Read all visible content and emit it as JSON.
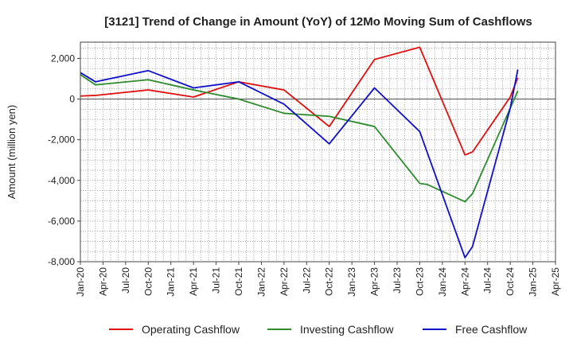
{
  "chart_data": {
    "type": "line",
    "title": "[3121]  Trend of Change in Amount (YoY) of 12Mo Moving Sum of Cashflows",
    "xlabel": "",
    "ylabel": "Amount (million yen)",
    "ylim": [
      -8000,
      2800
    ],
    "yticks": [
      2000,
      0,
      -2000,
      -4000,
      -6000,
      -8000
    ],
    "ytick_labels": [
      "2,000",
      "0",
      "-2,000",
      "-4,000",
      "-6,000",
      "-8,000"
    ],
    "x_range": [
      0,
      63
    ],
    "xticks": [
      {
        "label": "Jan-20",
        "index": 0
      },
      {
        "label": "Apr-20",
        "index": 3
      },
      {
        "label": "Jul-20",
        "index": 6
      },
      {
        "label": "Oct-20",
        "index": 9
      },
      {
        "label": "Jan-21",
        "index": 12
      },
      {
        "label": "Apr-21",
        "index": 15
      },
      {
        "label": "Jul-21",
        "index": 18
      },
      {
        "label": "Oct-21",
        "index": 21
      },
      {
        "label": "Jan-22",
        "index": 24
      },
      {
        "label": "Apr-22",
        "index": 27
      },
      {
        "label": "Jul-22",
        "index": 30
      },
      {
        "label": "Oct-22",
        "index": 33
      },
      {
        "label": "Jan-23",
        "index": 36
      },
      {
        "label": "Apr-23",
        "index": 39
      },
      {
        "label": "Jul-23",
        "index": 42
      },
      {
        "label": "Oct-23",
        "index": 45
      },
      {
        "label": "Jan-24",
        "index": 48
      },
      {
        "label": "Apr-24",
        "index": 51
      },
      {
        "label": "Jul-24",
        "index": 54
      },
      {
        "label": "Oct-24",
        "index": 57
      },
      {
        "label": "Jan-25",
        "index": 60
      },
      {
        "label": "Apr-25",
        "index": 63
      }
    ],
    "grid": true,
    "legend_position": "bottom",
    "series": [
      {
        "name": "Operating Cashflow",
        "color": "#e01010",
        "points": [
          [
            0,
            150
          ],
          [
            2,
            180
          ],
          [
            9,
            450
          ],
          [
            15,
            100
          ],
          [
            21,
            850
          ],
          [
            27,
            450
          ],
          [
            33,
            -1350
          ],
          [
            39,
            1950
          ],
          [
            42,
            2250
          ],
          [
            45,
            2550
          ],
          [
            51,
            -2750
          ],
          [
            52,
            -2600
          ],
          [
            57,
            100
          ],
          [
            58,
            1050
          ]
        ]
      },
      {
        "name": "Investing Cashflow",
        "color": "#2e8b2e",
        "points": [
          [
            0,
            1200
          ],
          [
            2,
            700
          ],
          [
            9,
            950
          ],
          [
            15,
            450
          ],
          [
            21,
            0
          ],
          [
            27,
            -700
          ],
          [
            33,
            -850
          ],
          [
            39,
            -1350
          ],
          [
            45,
            -4150
          ],
          [
            46,
            -4200
          ],
          [
            51,
            -5050
          ],
          [
            52,
            -4650
          ],
          [
            57,
            -450
          ],
          [
            58,
            400
          ]
        ]
      },
      {
        "name": "Free Cashflow",
        "color": "#1010cc",
        "points": [
          [
            0,
            1300
          ],
          [
            2,
            850
          ],
          [
            9,
            1400
          ],
          [
            15,
            550
          ],
          [
            21,
            850
          ],
          [
            27,
            -250
          ],
          [
            33,
            -2200
          ],
          [
            39,
            550
          ],
          [
            45,
            -1600
          ],
          [
            51,
            -7800
          ],
          [
            52,
            -7250
          ],
          [
            57,
            -450
          ],
          [
            58,
            1450
          ]
        ]
      }
    ]
  }
}
